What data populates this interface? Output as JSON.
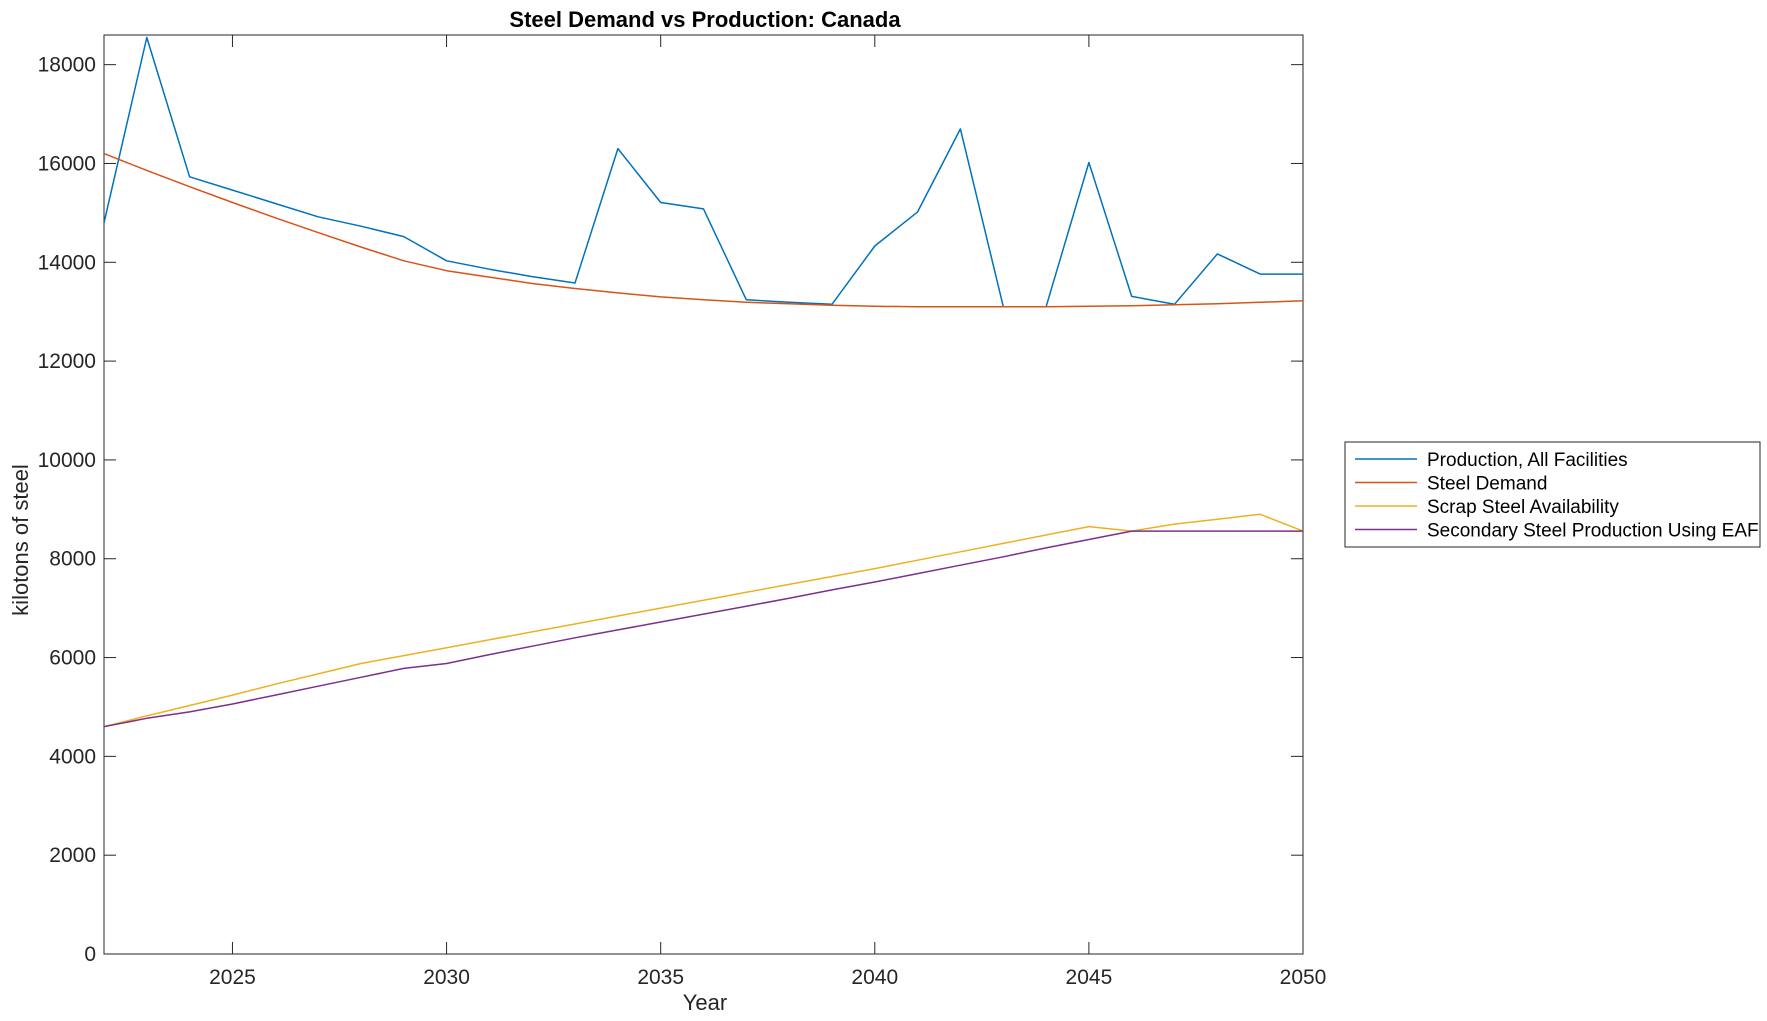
{
  "chart_data": {
    "type": "line",
    "title": "Steel Demand vs Production: Canada",
    "xlabel": "Year",
    "ylabel": "kilotons of steel",
    "xlim": [
      2022,
      2050
    ],
    "ylim": [
      0,
      18600
    ],
    "xticks": [
      2025,
      2030,
      2035,
      2040,
      2045,
      2050
    ],
    "yticks": [
      0,
      2000,
      4000,
      6000,
      8000,
      10000,
      12000,
      14000,
      16000,
      18000
    ],
    "grid": false,
    "legend_position": "outside-right",
    "x": [
      2022,
      2023,
      2024,
      2025,
      2026,
      2027,
      2028,
      2029,
      2030,
      2031,
      2032,
      2033,
      2034,
      2035,
      2036,
      2037,
      2038,
      2039,
      2040,
      2041,
      2042,
      2043,
      2044,
      2045,
      2046,
      2047,
      2048,
      2049,
      2050
    ],
    "series": [
      {
        "name": "Production, All Facilities",
        "color": "#0072BD",
        "values": [
          14800,
          18550,
          15730,
          15460,
          15190,
          14920,
          14730,
          14520,
          14030,
          13860,
          13710,
          13580,
          16300,
          15210,
          15080,
          13240,
          13190,
          13150,
          14330,
          15020,
          16700,
          13100,
          13100,
          16020,
          13310,
          13150,
          14170,
          13760,
          13760
        ]
      },
      {
        "name": "Steel Demand",
        "color": "#D95319",
        "values": [
          16200,
          15860,
          15530,
          15210,
          14900,
          14600,
          14310,
          14030,
          13830,
          13700,
          13570,
          13470,
          13380,
          13300,
          13240,
          13190,
          13160,
          13130,
          13110,
          13100,
          13100,
          13100,
          13100,
          13110,
          13120,
          13140,
          13160,
          13190,
          13220
        ]
      },
      {
        "name": "Scrap Steel Availability",
        "color": "#EDB120",
        "values": [
          4600,
          4820,
          5030,
          5240,
          5460,
          5670,
          5880,
          6040,
          6200,
          6360,
          6520,
          6680,
          6840,
          7000,
          7160,
          7320,
          7480,
          7640,
          7800,
          7970,
          8140,
          8310,
          8480,
          8650,
          8560,
          8700,
          8800,
          8900,
          8560
        ]
      },
      {
        "name": "Secondary Steel Production Using EAF",
        "color": "#7E2F8E",
        "values": [
          4600,
          4770,
          4900,
          5060,
          5240,
          5420,
          5600,
          5780,
          5880,
          6060,
          6230,
          6400,
          6560,
          6720,
          6880,
          7040,
          7200,
          7370,
          7530,
          7700,
          7870,
          8040,
          8220,
          8390,
          8560,
          8560,
          8560,
          8560,
          8560
        ]
      }
    ]
  }
}
